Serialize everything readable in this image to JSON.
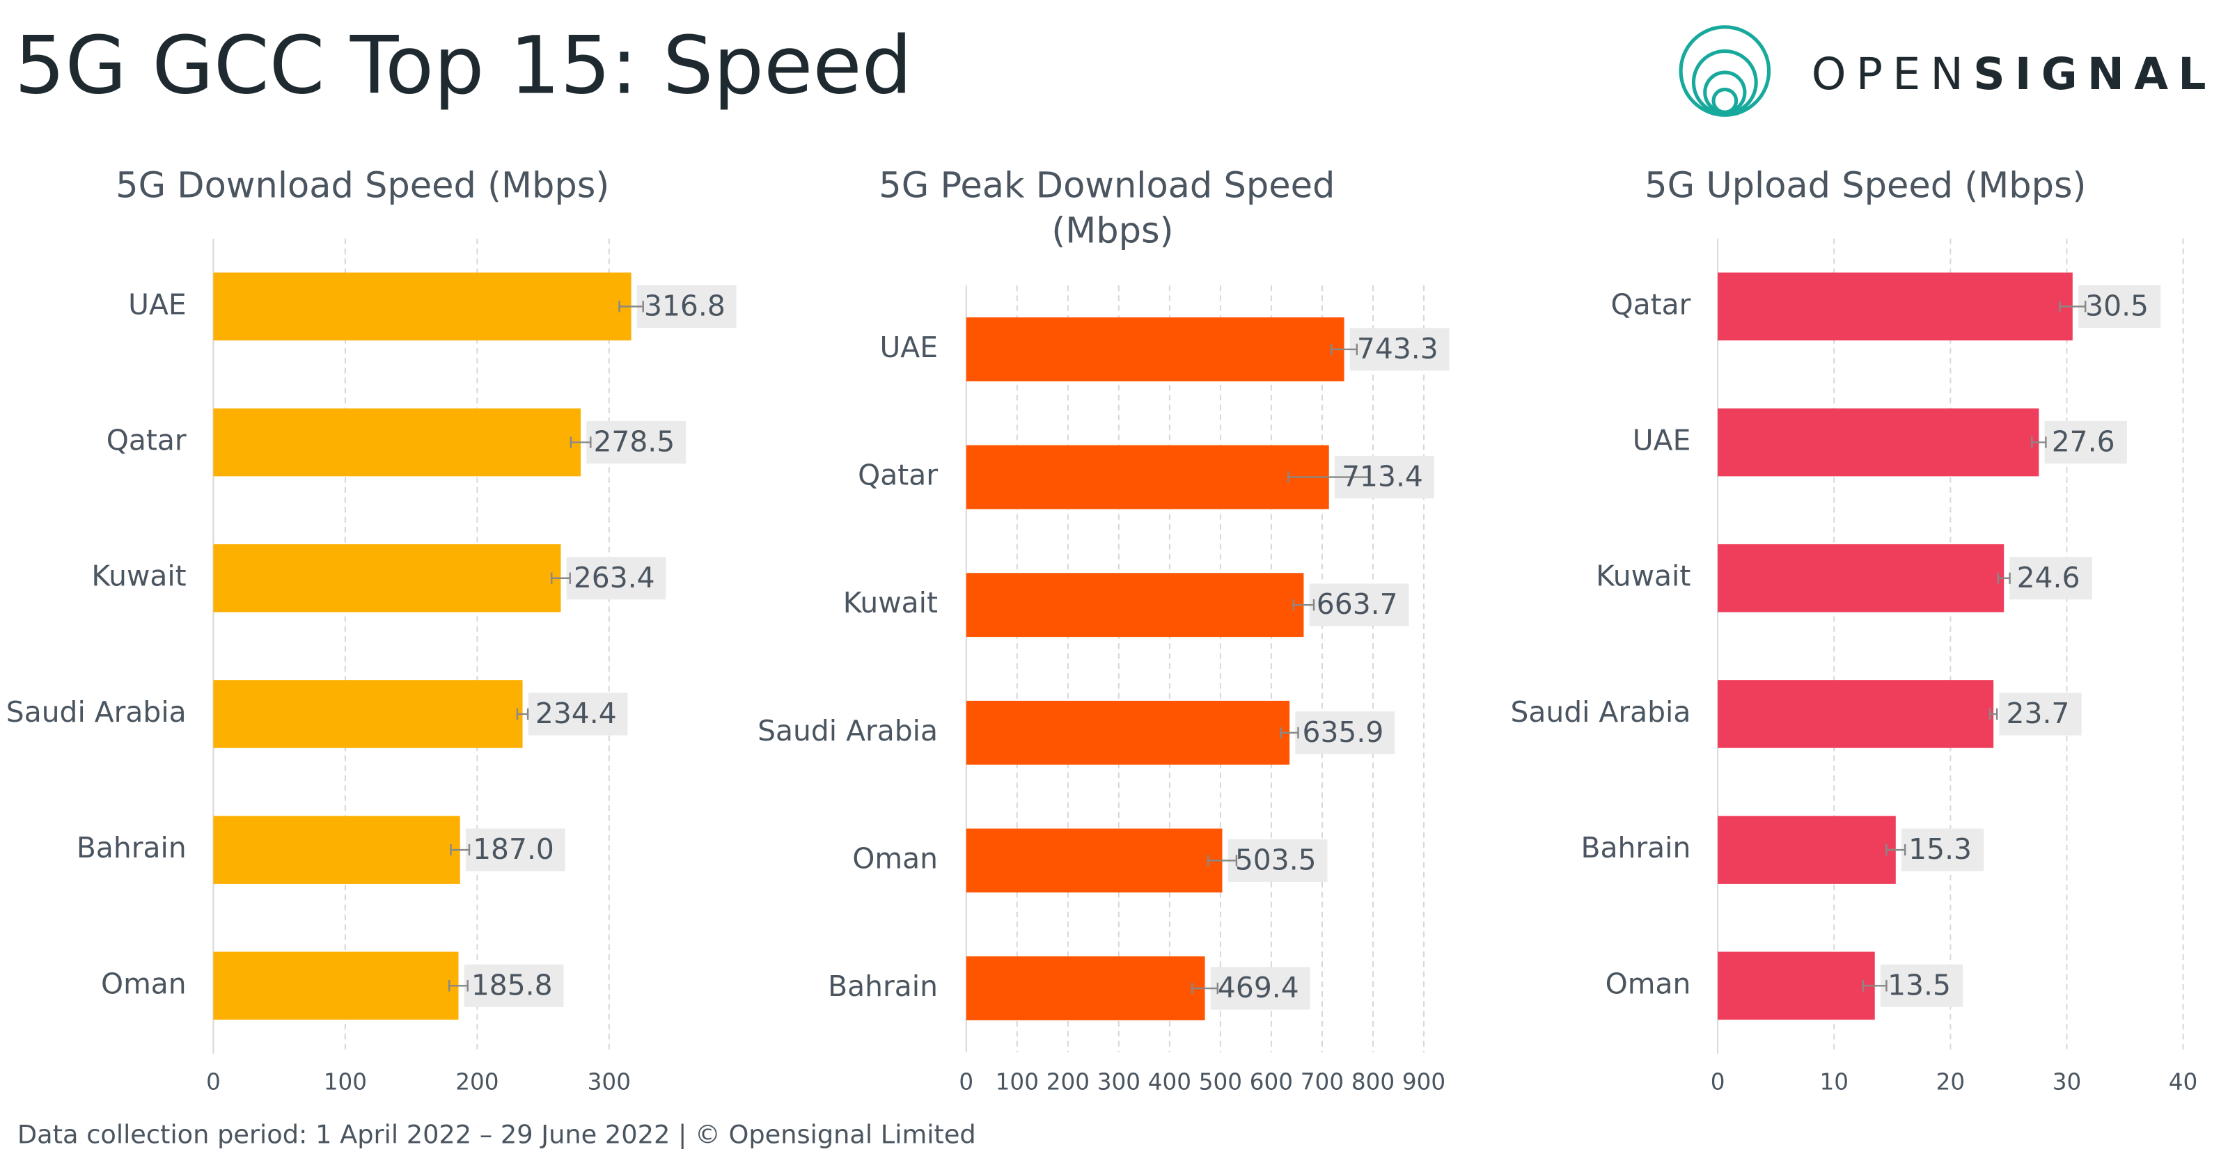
{
  "header": {
    "title": "5G GCC Top 15: Speed",
    "logo_light": "OPEN",
    "logo_bold": "SIGNAL"
  },
  "footer": "Data collection period: 1 April 2022 – 29 June 2022 |  © Opensignal Limited",
  "chart_data": [
    {
      "type": "bar",
      "orientation": "horizontal",
      "title": "5G Download Speed (Mbps)",
      "categories": [
        "UAE",
        "Qatar",
        "Kuwait",
        "Saudi Arabia",
        "Bahrain",
        "Oman"
      ],
      "values": [
        316.8,
        278.5,
        263.4,
        234.4,
        187.0,
        185.8
      ],
      "value_labels": [
        "316.8",
        "278.5",
        "263.4",
        "234.4",
        "187.0",
        "185.8"
      ],
      "errors": [
        9,
        7.5,
        7,
        4,
        7,
        7
      ],
      "color": "#fdb000",
      "xlim": [
        0,
        350
      ],
      "xticks": [
        0,
        100,
        200,
        300
      ],
      "grid": true
    },
    {
      "type": "bar",
      "orientation": "horizontal",
      "title": "5G Peak Download Speed (Mbps)",
      "categories": [
        "UAE",
        "Qatar",
        "Kuwait",
        "Saudi Arabia",
        "Oman",
        "Bahrain"
      ],
      "values": [
        743.3,
        713.4,
        663.7,
        635.9,
        503.5,
        469.4
      ],
      "value_labels": [
        "743.3",
        "713.4",
        "663.7",
        "635.9",
        "503.5",
        "469.4"
      ],
      "errors": [
        25,
        80,
        20,
        17,
        28,
        25
      ],
      "color": "#ff5500",
      "xlim": [
        0,
        950
      ],
      "xticks": [
        0,
        100,
        200,
        300,
        400,
        500,
        600,
        700,
        800,
        900
      ],
      "grid": true
    },
    {
      "type": "bar",
      "orientation": "horizontal",
      "title": "5G Upload Speed (Mbps)",
      "categories": [
        "Qatar",
        "UAE",
        "Kuwait",
        "Saudi Arabia",
        "Bahrain",
        "Oman"
      ],
      "values": [
        30.5,
        27.6,
        24.6,
        23.7,
        15.3,
        13.5
      ],
      "value_labels": [
        "30.5",
        "27.6",
        "24.6",
        "23.7",
        "15.3",
        "13.5"
      ],
      "errors": [
        1.1,
        0.6,
        0.5,
        0.3,
        0.8,
        1.0
      ],
      "color": "#ef3e5c",
      "xlim": [
        0,
        42
      ],
      "xticks": [
        0,
        10,
        20,
        30,
        40
      ],
      "grid": true
    }
  ]
}
